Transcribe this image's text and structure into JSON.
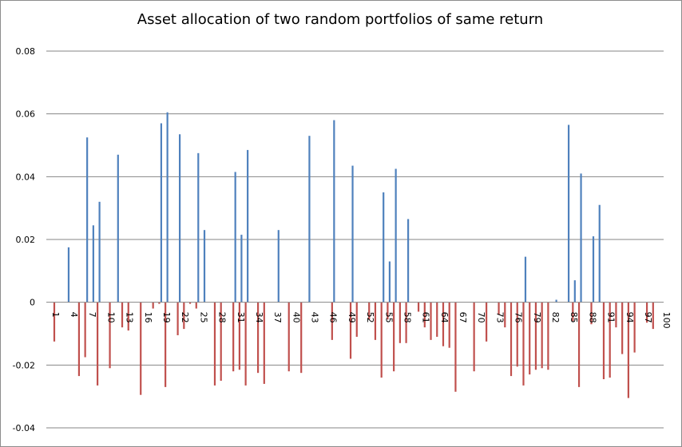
{
  "chart_data": {
    "type": "bar",
    "title": "Asset allocation of two random portfolios of same return",
    "xlabel": "",
    "ylabel": "",
    "ylim": [
      -0.04,
      0.08
    ],
    "y_ticks": [
      "-0.04",
      "-0.02",
      "0",
      "0.02",
      "0.04",
      "0.06",
      "0.08"
    ],
    "x_tick_labels": [
      "1",
      "4",
      "7",
      "10",
      "13",
      "16",
      "19",
      "22",
      "25",
      "28",
      "31",
      "34",
      "37",
      "40",
      "43",
      "46",
      "49",
      "52",
      "55",
      "58",
      "61",
      "64",
      "67",
      "70",
      "73",
      "76",
      "79",
      "82",
      "85",
      "88",
      "91",
      "94",
      "97",
      "100"
    ],
    "grid": true,
    "legend": "none",
    "colors": [
      "#4f81bd",
      "#c0504d"
    ],
    "categories": [
      1,
      2,
      3,
      4,
      5,
      6,
      7,
      8,
      9,
      10,
      11,
      12,
      13,
      14,
      15,
      16,
      17,
      18,
      19,
      20,
      21,
      22,
      23,
      24,
      25,
      26,
      27,
      28,
      29,
      30,
      31,
      32,
      33,
      34,
      35,
      36,
      37,
      38,
      39,
      40,
      41,
      42,
      43,
      44,
      45,
      46,
      47,
      48,
      49,
      50,
      51,
      52,
      53,
      54,
      55,
      56,
      57,
      58,
      59,
      60,
      61,
      62,
      63,
      64,
      65,
      66,
      67,
      68,
      69,
      70,
      71,
      72,
      73,
      74,
      75,
      76,
      77,
      78,
      79,
      80,
      81,
      82,
      83,
      84,
      85,
      86,
      87,
      88,
      89,
      90,
      91,
      92,
      93,
      94,
      95,
      96,
      97,
      98,
      99,
      100
    ],
    "series": [
      {
        "values": [
          0,
          0,
          0,
          0.0175,
          0,
          0,
          0.0525,
          0.0245,
          0.032,
          0,
          0,
          0.047,
          0,
          0,
          0,
          0,
          0,
          0,
          0.057,
          0.0605,
          0,
          0.0535,
          0,
          0,
          0.0475,
          0.023,
          0,
          0,
          0,
          0,
          0.0415,
          0.0215,
          0.0485,
          0,
          0,
          0,
          0,
          0.023,
          0,
          0,
          0,
          0,
          0.053,
          0,
          0,
          0,
          0.058,
          0,
          0,
          0.0435,
          0,
          0,
          0,
          0,
          0.035,
          0.013,
          0.0425,
          0,
          0.0265,
          0,
          0,
          0,
          0,
          0,
          0,
          0,
          0,
          0,
          0,
          0,
          0,
          0,
          0,
          0,
          0,
          0,
          0,
          0.0145,
          0,
          0,
          0,
          0,
          0.0008,
          0,
          0.0565,
          0.007,
          0.041,
          0,
          0.021,
          0.031,
          0,
          0,
          0,
          0,
          0,
          0,
          0,
          0,
          0,
          0
        ]
      },
      {
        "values": [
          0,
          -0.0125,
          0,
          0,
          0,
          -0.0235,
          -0.0175,
          0,
          -0.0265,
          0,
          -0.021,
          0,
          -0.008,
          -0.009,
          0,
          -0.0295,
          0,
          -0.002,
          -0.0005,
          -0.027,
          0,
          -0.0105,
          -0.0085,
          -0.0005,
          -0.002,
          0,
          0,
          -0.0265,
          -0.025,
          0,
          -0.022,
          -0.0215,
          -0.0265,
          0,
          -0.0225,
          -0.026,
          0,
          0,
          0,
          -0.022,
          0,
          -0.0225,
          0,
          0,
          0,
          0,
          -0.012,
          0,
          0,
          -0.018,
          -0.011,
          0,
          -0.0055,
          -0.012,
          -0.024,
          -0.0055,
          -0.022,
          -0.013,
          -0.013,
          0,
          -0.003,
          -0.008,
          -0.012,
          -0.011,
          -0.014,
          -0.0145,
          -0.0285,
          0,
          0,
          -0.022,
          0,
          -0.0125,
          0,
          -0.004,
          -0.008,
          -0.0235,
          -0.0205,
          -0.0265,
          -0.023,
          -0.0215,
          -0.021,
          -0.0215,
          0,
          0,
          0,
          -0.006,
          -0.027,
          0,
          -0.007,
          0,
          -0.0245,
          -0.024,
          -0.008,
          -0.0165,
          -0.0305,
          -0.016,
          0,
          -0.0065,
          -0.0085,
          0
        ]
      }
    ]
  }
}
